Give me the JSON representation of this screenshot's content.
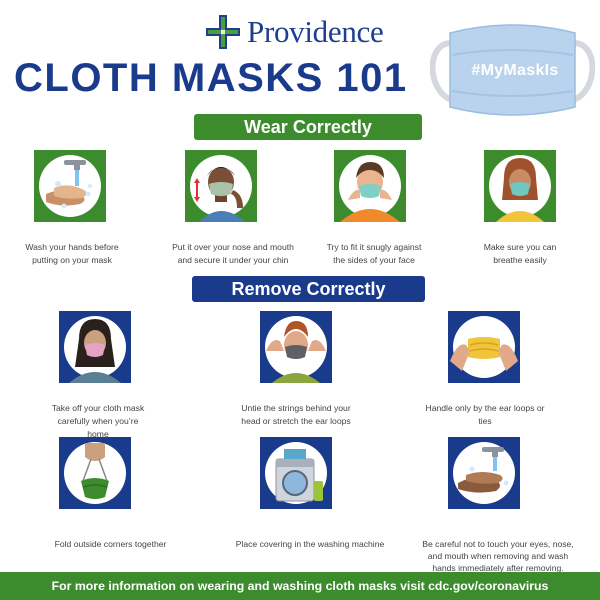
{
  "header": {
    "brand": "Providence",
    "title": "CLOTH MASKS 101",
    "hashtag": "#MyMaskIs"
  },
  "sections": {
    "wear_heading": "Wear Correctly",
    "remove_heading": "Remove Correctly"
  },
  "wear_steps": [
    {
      "caption": "Wash your hands before putting on your mask",
      "icon": "hand-washing-icon"
    },
    {
      "caption": "Put it over your nose and mouth and secure it under your chin",
      "icon": "man-adjusting-mask-icon"
    },
    {
      "caption": "Try to fit it snugly against the sides of your face",
      "icon": "man-fitting-mask-icon"
    },
    {
      "caption": "Make sure you can breathe easily",
      "icon": "woman-wearing-mask-icon"
    }
  ],
  "remove_steps": [
    {
      "caption": "Take off your cloth mask carefully when you’re home",
      "icon": "woman-wearing-pink-mask-icon"
    },
    {
      "caption": "Untie the strings behind your head or stretch the ear loops",
      "icon": "man-removing-mask-icon"
    },
    {
      "caption": "Handle only by the ear loops or ties",
      "icon": "hands-holding-mask-icon"
    },
    {
      "caption": "Fold outside corners together",
      "icon": "hand-holding-folded-mask-icon"
    },
    {
      "caption": "Place covering in the washing machine",
      "icon": "washing-machine-icon"
    },
    {
      "caption": "Be careful not to touch your eyes, nose, and mouth when removing and wash hands immediately after removing.",
      "icon": "hand-washing-icon"
    }
  ],
  "footer": {
    "text": "For more information on wearing and washing cloth masks visit cdc.gov/coronavirus"
  },
  "colors": {
    "navy": "#1a3a8c",
    "green": "#3c8c2e",
    "mask_blue": "#b9d3ee"
  }
}
